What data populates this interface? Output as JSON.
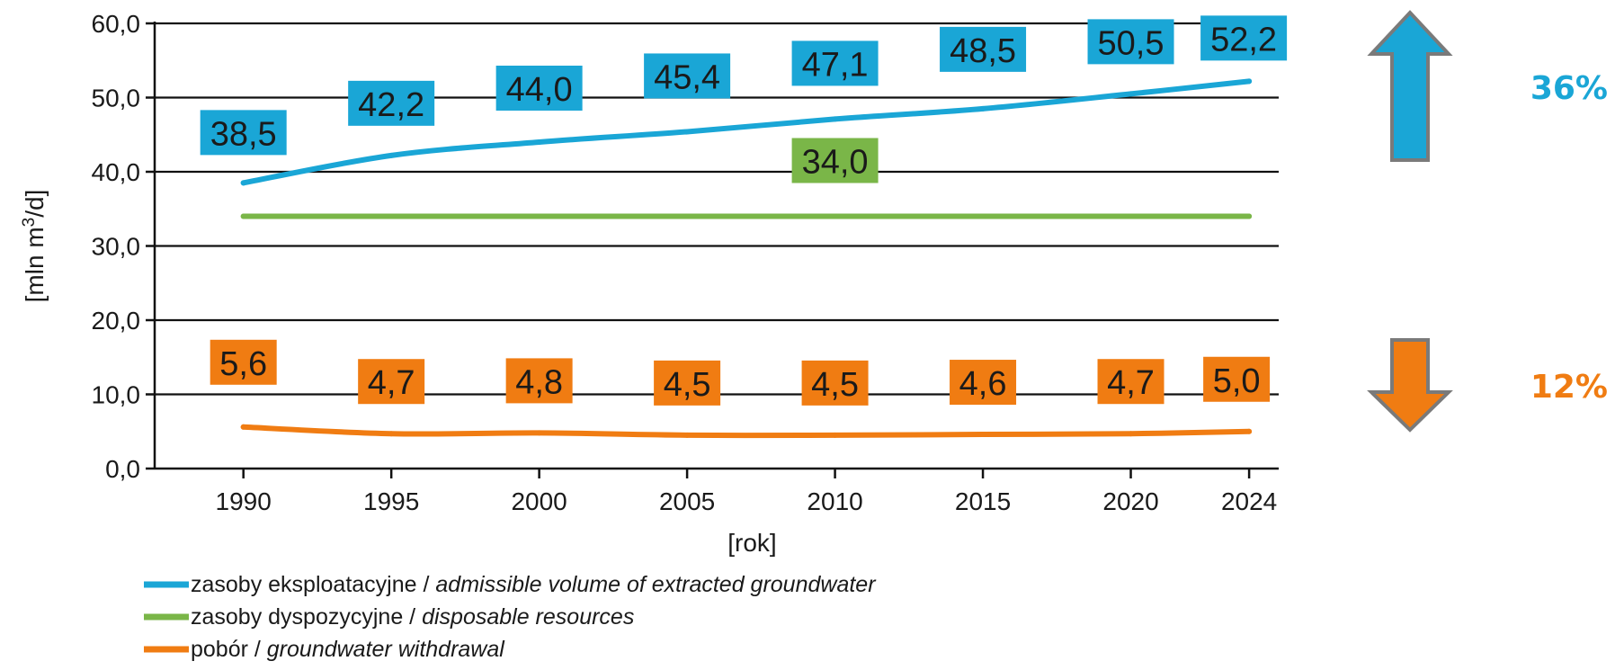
{
  "chart_data": {
    "type": "line",
    "x": [
      1990,
      1995,
      2000,
      2005,
      2010,
      2015,
      2020,
      2024
    ],
    "xlabel": "[rok]",
    "ylabel_parts": [
      "[mln m",
      "3",
      "/d]"
    ],
    "ylim": [
      0,
      60
    ],
    "yticks": [
      0,
      10,
      20,
      30,
      40,
      50,
      60
    ],
    "ytick_labels": [
      "0,0",
      "10,0",
      "20,0",
      "30,0",
      "40,0",
      "50,0",
      "60,0"
    ],
    "xtick_labels": [
      "1990",
      "1995",
      "2000",
      "2005",
      "2010",
      "2015",
      "2020",
      "2024"
    ],
    "grid": "horizontal",
    "legend_position": "bottom",
    "series": [
      {
        "key": "exploitable",
        "name_pl": "zasoby eksploatacyjne",
        "separator": " / ",
        "name_en": "admissible volume of extracted groundwater",
        "color": "#1aa6d6",
        "values": [
          38.5,
          42.2,
          44.0,
          45.4,
          47.1,
          48.5,
          50.5,
          52.2
        ],
        "labels": [
          {
            "year": 1990,
            "text": "38,5"
          },
          {
            "year": 1995,
            "text": "42,2"
          },
          {
            "year": 2000,
            "text": "44,0"
          },
          {
            "year": 2005,
            "text": "45,4"
          },
          {
            "year": 2010,
            "text": "47,1"
          },
          {
            "year": 2015,
            "text": "48,5"
          },
          {
            "year": 2020,
            "text": "50,5"
          },
          {
            "year": 2024,
            "text": "52,2"
          }
        ]
      },
      {
        "key": "disposable",
        "name_pl": "zasoby dyspozycyjne",
        "separator": " / ",
        "name_en": "disposable resources",
        "color": "#7ab648",
        "values": [
          34.0,
          34.0,
          34.0,
          34.0,
          34.0,
          34.0,
          34.0,
          34.0
        ],
        "labels": [
          {
            "year": 2010,
            "text": "34,0"
          }
        ]
      },
      {
        "key": "withdrawal",
        "name_pl": "pobór",
        "separator": " / ",
        "name_en": "groundwater withdrawal",
        "color": "#f07c12",
        "values": [
          5.6,
          4.7,
          4.8,
          4.5,
          4.5,
          4.6,
          4.7,
          5.0
        ],
        "labels": [
          {
            "year": 1990,
            "text": "5,6"
          },
          {
            "year": 1995,
            "text": "4,7"
          },
          {
            "year": 2000,
            "text": "4,8"
          },
          {
            "year": 2005,
            "text": "4,5"
          },
          {
            "year": 2010,
            "text": "4,5"
          },
          {
            "year": 2015,
            "text": "4,6"
          },
          {
            "year": 2020,
            "text": "4,7"
          },
          {
            "year": 2024,
            "text": "5,0"
          }
        ]
      }
    ],
    "annotations": [
      {
        "key": "increase",
        "direction": "up",
        "text": "36%",
        "color": "#1aa6d6"
      },
      {
        "key": "decrease",
        "direction": "down",
        "text": "12%",
        "color": "#f07c12"
      }
    ]
  }
}
